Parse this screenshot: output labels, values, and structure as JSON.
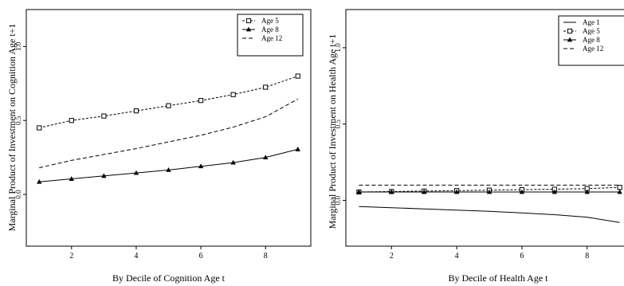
{
  "chart_data": [
    {
      "type": "line",
      "title": "",
      "xlabel": "By Decile of Cognition Age t",
      "ylabel": "Marginal Product of Investment on Cognition Age t+1",
      "xlim": [
        0.6,
        9.4
      ],
      "ylim": [
        -0.35,
        1.25
      ],
      "xticks": [
        "2",
        "4",
        "6",
        "8"
      ],
      "yticks": [
        "0.0",
        "0.5",
        "1.0"
      ],
      "legend_position": "top-right",
      "x": [
        1,
        2,
        3,
        4,
        5,
        6,
        7,
        8,
        9
      ],
      "series": [
        {
          "name": "Age 5",
          "style": "dotted-square",
          "values": [
            0.45,
            0.5,
            0.53,
            0.565,
            0.6,
            0.635,
            0.675,
            0.725,
            0.8
          ]
        },
        {
          "name": "Age 8",
          "style": "solid-triangle",
          "values": [
            0.085,
            0.105,
            0.125,
            0.145,
            0.165,
            0.19,
            0.215,
            0.25,
            0.305
          ]
        },
        {
          "name": "Age 12",
          "style": "dashed",
          "values": [
            0.18,
            0.23,
            0.27,
            0.31,
            0.355,
            0.4,
            0.455,
            0.525,
            0.645
          ]
        }
      ]
    },
    {
      "type": "line",
      "title": "",
      "xlabel": "By Decile of Health Age t",
      "ylabel": "Marginal Product of Investment on Health Age t+1",
      "xlim": [
        0.6,
        9.4
      ],
      "ylim": [
        -0.3,
        1.25
      ],
      "xticks": [
        "2",
        "4",
        "6",
        "8"
      ],
      "yticks": [
        "0.0",
        "0.5",
        "1.0"
      ],
      "legend_position": "top-right",
      "x": [
        1,
        2,
        3,
        4,
        5,
        6,
        7,
        8,
        9
      ],
      "series": [
        {
          "name": "Age 1",
          "style": "solid",
          "values": [
            -0.04,
            -0.048,
            -0.056,
            -0.064,
            -0.072,
            -0.082,
            -0.094,
            -0.11,
            -0.145
          ]
        },
        {
          "name": "Age 5",
          "style": "dotted-square",
          "values": [
            0.055,
            0.058,
            0.061,
            0.064,
            0.067,
            0.07,
            0.073,
            0.077,
            0.085
          ]
        },
        {
          "name": "Age 8",
          "style": "solid-triangle",
          "values": [
            0.055,
            0.055,
            0.055,
            0.055,
            0.055,
            0.055,
            0.055,
            0.055,
            0.055
          ]
        },
        {
          "name": "Age 12",
          "style": "dashed",
          "values": [
            0.1,
            0.1,
            0.1,
            0.1,
            0.1,
            0.1,
            0.1,
            0.1,
            0.1
          ]
        }
      ]
    }
  ]
}
